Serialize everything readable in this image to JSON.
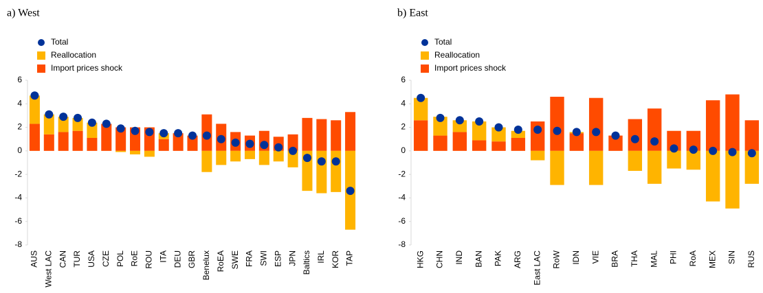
{
  "chart_data": [
    {
      "type": "bar",
      "title": "a) West",
      "stacked": true,
      "legend": "upper left",
      "categories": [
        "AUS",
        "West LAC",
        "CAN",
        "TUR",
        "USA",
        "CZE",
        "POL",
        "RoE",
        "ROU",
        "ITA",
        "DEU",
        "GBR",
        "Benelux",
        "RoEA",
        "SWE",
        "FRA",
        "SWI",
        "ESP",
        "JPN",
        "Baltics",
        "IRL",
        "KOR",
        "TAP"
      ],
      "series": [
        {
          "name": "Total",
          "type": "dot",
          "color": "#003299",
          "values": [
            4.7,
            3.1,
            2.9,
            2.8,
            2.4,
            2.3,
            1.9,
            1.7,
            1.6,
            1.5,
            1.5,
            1.3,
            1.3,
            1.0,
            0.7,
            0.6,
            0.5,
            0.3,
            0.0,
            -0.6,
            -0.9,
            -0.9,
            -3.4
          ]
        },
        {
          "name": "Reallocation",
          "type": "bar",
          "color": "#ffb400",
          "values": [
            2.4,
            1.7,
            1.3,
            1.1,
            1.3,
            0.0,
            -0.1,
            -0.3,
            -0.5,
            0.5,
            0.0,
            0.0,
            -1.8,
            -1.2,
            -0.9,
            -0.7,
            -1.2,
            -0.9,
            -1.4,
            -3.4,
            -3.6,
            -3.5,
            -6.7
          ]
        },
        {
          "name": "Import prices shock",
          "type": "bar",
          "color": "#ff4b00",
          "values": [
            2.3,
            1.4,
            1.6,
            1.7,
            1.1,
            2.3,
            2.0,
            2.0,
            2.0,
            1.0,
            1.5,
            1.3,
            3.1,
            2.3,
            1.6,
            1.3,
            1.7,
            1.2,
            1.4,
            2.8,
            2.7,
            2.6,
            3.3
          ]
        }
      ],
      "ylim": [
        -8,
        6
      ],
      "yticks": [
        -8,
        -6,
        -4,
        -2,
        0,
        2,
        4,
        6
      ]
    },
    {
      "type": "bar",
      "title": "b) East",
      "stacked": true,
      "legend": "upper left",
      "categories": [
        "HKG",
        "CHN",
        "IND",
        "BAN",
        "PAK",
        "ARG",
        "East LAC",
        "RoW",
        "IDN",
        "VIE",
        "BRA",
        "THA",
        "MAL",
        "PHI",
        "RoA",
        "MEX",
        "SIN",
        "RUS"
      ],
      "series": [
        {
          "name": "Total",
          "type": "dot",
          "color": "#003299",
          "values": [
            4.5,
            2.8,
            2.6,
            2.5,
            2.0,
            1.8,
            1.8,
            1.7,
            1.6,
            1.6,
            1.3,
            1.0,
            0.8,
            0.2,
            0.1,
            0.0,
            -0.1,
            -0.2
          ]
        },
        {
          "name": "Reallocation",
          "type": "bar",
          "color": "#ffb400",
          "values": [
            1.9,
            1.6,
            1.0,
            1.6,
            1.2,
            0.6,
            -0.8,
            -2.9,
            0.1,
            -2.9,
            0.0,
            -1.7,
            -2.8,
            -1.5,
            -1.6,
            -4.3,
            -4.9,
            -2.8
          ]
        },
        {
          "name": "Import prices shock",
          "type": "bar",
          "color": "#ff4b00",
          "values": [
            2.6,
            1.3,
            1.6,
            0.9,
            0.8,
            1.1,
            2.5,
            4.6,
            1.5,
            4.5,
            1.3,
            2.7,
            3.6,
            1.7,
            1.7,
            4.3,
            4.8,
            2.6
          ]
        }
      ],
      "ylim": [
        -8,
        6
      ],
      "yticks": [
        -8,
        -6,
        -4,
        -2,
        0,
        2,
        4,
        6
      ]
    }
  ]
}
